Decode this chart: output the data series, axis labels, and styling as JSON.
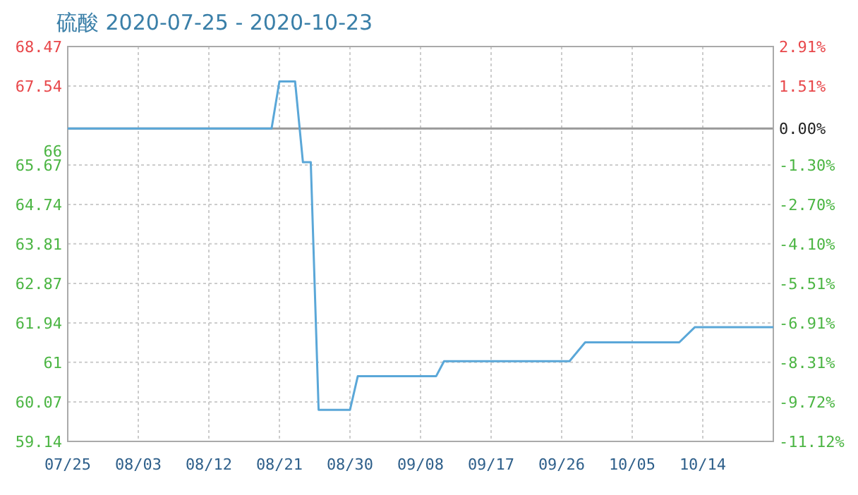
{
  "chart_data": {
    "type": "line",
    "title": "硫酸 2020-07-25 - 2020-10-23",
    "x": [
      "2020-07-25",
      "2020-08-20",
      "2020-08-21",
      "2020-08-23",
      "2020-08-24",
      "2020-08-25",
      "2020-08-26",
      "2020-08-30",
      "2020-08-31",
      "2020-09-10",
      "2020-09-11",
      "2020-09-27",
      "2020-09-29",
      "2020-10-11",
      "2020-10-13",
      "2020-10-23"
    ],
    "series": [
      {
        "color": "#5aa7d8",
        "axis": "y2",
        "values": [
          0,
          0,
          1.67,
          1.67,
          -1.2,
          -1.2,
          -10.0,
          -10.0,
          -8.8,
          -8.8,
          -8.27,
          -8.27,
          -7.6,
          -7.6,
          -7.06,
          -7.06
        ]
      }
    ],
    "xlim": [
      "2020-07-25",
      "2020-10-23"
    ],
    "xticks": [
      {
        "value": "2020-07-25",
        "label": "07/25"
      },
      {
        "value": "2020-08-03",
        "label": "08/03"
      },
      {
        "value": "2020-08-12",
        "label": "08/12"
      },
      {
        "value": "2020-08-21",
        "label": "08/21"
      },
      {
        "value": "2020-08-30",
        "label": "08/30"
      },
      {
        "value": "2020-09-08",
        "label": "09/08"
      },
      {
        "value": "2020-09-17",
        "label": "09/17"
      },
      {
        "value": "2020-09-26",
        "label": "09/26"
      },
      {
        "value": "2020-10-05",
        "label": "10/05"
      },
      {
        "value": "2020-10-14",
        "label": "10/14"
      }
    ],
    "ylim": [
      59.14,
      68.47
    ],
    "yticks": [
      68.47,
      67.54,
      66,
      65.67,
      64.74,
      63.81,
      62.87,
      61.94,
      61,
      60.07,
      59.14
    ],
    "y2lim": [
      -11.12,
      2.91
    ],
    "y2ticks": [
      {
        "value": 2.91,
        "label": "2.91%"
      },
      {
        "value": 1.51,
        "label": "1.51%"
      },
      {
        "value": 0,
        "label": "0.00%"
      },
      {
        "value": -1.3,
        "label": "-1.30%"
      },
      {
        "value": -2.7,
        "label": "-2.70%"
      },
      {
        "value": -4.1,
        "label": "-4.10%"
      },
      {
        "value": -5.51,
        "label": "-5.51%"
      },
      {
        "value": -6.91,
        "label": "-6.91%"
      },
      {
        "value": -8.31,
        "label": "-8.31%"
      },
      {
        "value": -9.72,
        "label": "-9.72%"
      },
      {
        "value": -11.12,
        "label": "-11.12%"
      }
    ],
    "ref_lines": [
      {
        "axis": "y2",
        "value": 0,
        "color": "#999999"
      }
    ],
    "grid": true,
    "marker": "none",
    "line_style": "solid"
  }
}
